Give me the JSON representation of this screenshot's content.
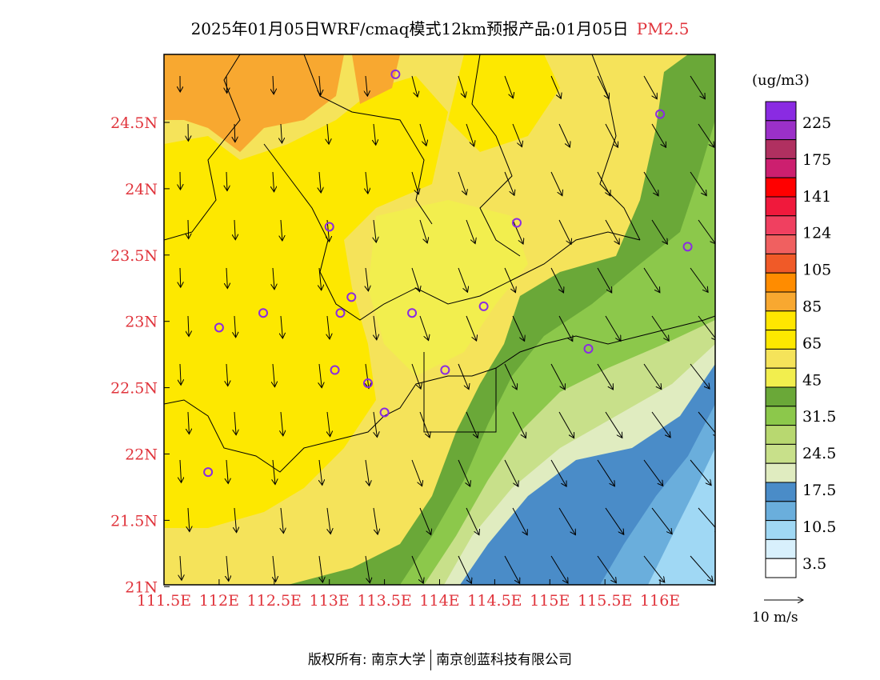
{
  "header": {
    "title": "2025年01月05日WRF/cmaq模式12km预报产品:01月05日",
    "pollutant": "PM2.5"
  },
  "axes": {
    "lon_ticks": [
      "111.5E",
      "112E",
      "112.5E",
      "113E",
      "113.5E",
      "114E",
      "114.5E",
      "115E",
      "115.5E",
      "116E"
    ],
    "lat_ticks": [
      "24.5N",
      "24N",
      "23.5N",
      "23N",
      "22.5N",
      "22N",
      "21.5N",
      "21N"
    ],
    "tick_color": "#e0343c"
  },
  "legend": {
    "unit": "(ug/m3)",
    "labels": [
      "225",
      "175",
      "141",
      "124",
      "105",
      "85",
      "65",
      "45",
      "31.5",
      "24.5",
      "17.5",
      "10.5",
      "3.5"
    ],
    "colors": [
      "#8a2be2",
      "#9b30c8",
      "#b03060",
      "#cc1f6f",
      "#ff0000",
      "#f0193c",
      "#f04060",
      "#f06060",
      "#f05a28",
      "#ff8c00",
      "#f8a830",
      "#ffe600",
      "#fde800",
      "#f5e35a",
      "#f2ee4e",
      "#6aa838",
      "#8cc84b",
      "#b8d870",
      "#c8e08a",
      "#e0ecc0",
      "#4a8cc8",
      "#6aaedc",
      "#a0d8f4",
      "#d8f0fc",
      "#ffffff"
    ]
  },
  "wind_reference": {
    "label": "10 m/s"
  },
  "footer": {
    "copyright": "版权所有: 南京大学",
    "partner": "南京创蓝科技有限公司"
  },
  "stations": [
    {
      "lon": 113.6,
      "lat": 24.85
    },
    {
      "lon": 116.0,
      "lat": 24.55
    },
    {
      "lon": 113.0,
      "lat": 23.7
    },
    {
      "lon": 114.7,
      "lat": 23.73
    },
    {
      "lon": 116.25,
      "lat": 23.55
    },
    {
      "lon": 113.2,
      "lat": 23.17
    },
    {
      "lon": 112.4,
      "lat": 23.05
    },
    {
      "lon": 113.1,
      "lat": 23.05
    },
    {
      "lon": 113.75,
      "lat": 23.05
    },
    {
      "lon": 114.4,
      "lat": 23.1
    },
    {
      "lon": 112.0,
      "lat": 22.94
    },
    {
      "lon": 115.35,
      "lat": 22.78
    },
    {
      "lon": 113.05,
      "lat": 22.62
    },
    {
      "lon": 113.35,
      "lat": 22.52
    },
    {
      "lon": 114.05,
      "lat": 22.62
    },
    {
      "lon": 113.5,
      "lat": 22.3
    },
    {
      "lon": 111.9,
      "lat": 21.85
    }
  ]
}
